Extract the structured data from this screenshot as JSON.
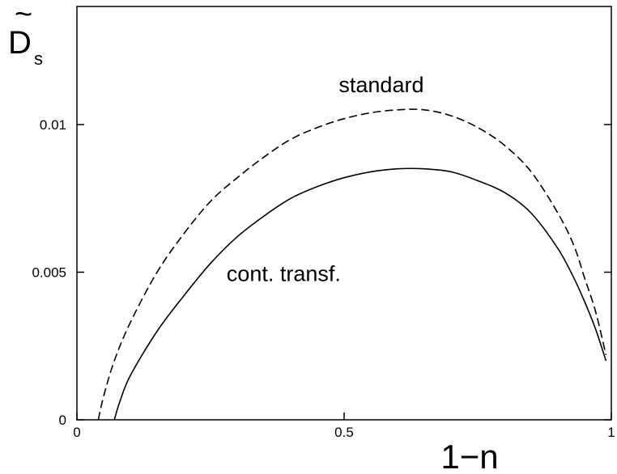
{
  "chart_data": {
    "type": "line",
    "xlabel": "1−n",
    "ylabel": {
      "tilde": "~",
      "main": "D",
      "subscript": "s"
    },
    "xlim": [
      0,
      1
    ],
    "ylim": [
      0,
      0.014
    ],
    "grid": false,
    "x_ticks": [
      {
        "value": 0,
        "label": "0"
      },
      {
        "value": 0.5,
        "label": "0.5"
      },
      {
        "value": 1,
        "label": "1"
      }
    ],
    "y_ticks": [
      {
        "value": 0,
        "label": "0"
      },
      {
        "value": 0.005,
        "label": "0.005"
      },
      {
        "value": 0.01,
        "label": "0.01"
      }
    ],
    "series": [
      {
        "name": "standard",
        "style": "dashed",
        "color": "#000000",
        "x": [
          0.04,
          0.05,
          0.07,
          0.1,
          0.15,
          0.2,
          0.25,
          0.3,
          0.35,
          0.4,
          0.45,
          0.5,
          0.55,
          0.6,
          0.65,
          0.7,
          0.75,
          0.8,
          0.85,
          0.9,
          0.93,
          0.95,
          0.97,
          0.99
        ],
        "y": [
          0.0,
          0.0008,
          0.002,
          0.0033,
          0.005,
          0.0063,
          0.0074,
          0.0082,
          0.0089,
          0.0095,
          0.0099,
          0.0102,
          0.0104,
          0.0105,
          0.0105,
          0.0103,
          0.0099,
          0.0093,
          0.0084,
          0.007,
          0.0059,
          0.0048,
          0.0037,
          0.0022
        ]
      },
      {
        "name": "cont. transf.",
        "style": "solid",
        "color": "#000000",
        "x": [
          0.07,
          0.08,
          0.1,
          0.15,
          0.2,
          0.25,
          0.3,
          0.35,
          0.4,
          0.45,
          0.5,
          0.55,
          0.6,
          0.65,
          0.7,
          0.75,
          0.8,
          0.85,
          0.9,
          0.93,
          0.95,
          0.97,
          0.99
        ],
        "y": [
          0.0,
          0.0006,
          0.0015,
          0.003,
          0.0042,
          0.0053,
          0.0062,
          0.0069,
          0.0075,
          0.0079,
          0.0082,
          0.0084,
          0.0085,
          0.0085,
          0.0084,
          0.0081,
          0.0077,
          0.007,
          0.0058,
          0.0048,
          0.004,
          0.0031,
          0.002
        ]
      }
    ],
    "annotations": [
      {
        "series": "standard",
        "text": "standard",
        "x": 0.49,
        "y": 0.0111
      },
      {
        "series": "cont. transf.",
        "text": "cont. transf.",
        "x": 0.28,
        "y": 0.0047
      }
    ]
  }
}
